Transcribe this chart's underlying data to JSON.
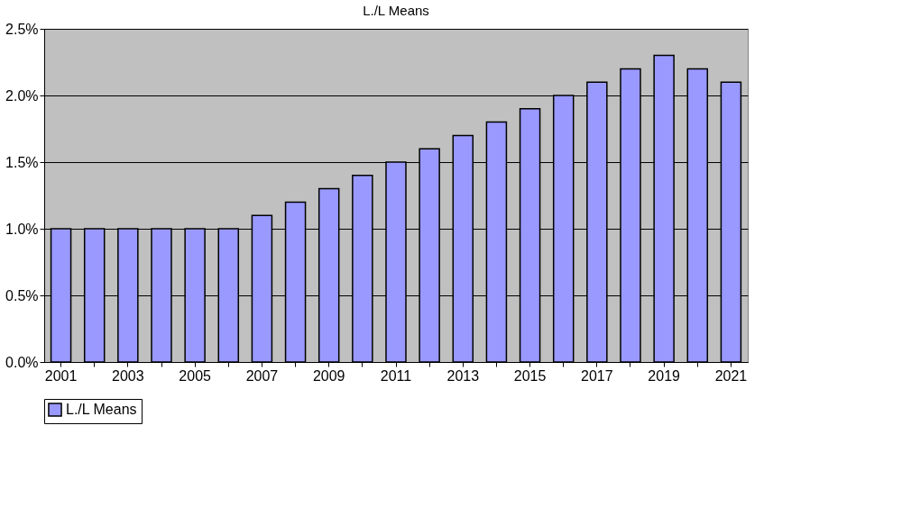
{
  "chart_data": {
    "type": "bar",
    "title": "L./L Means",
    "categories": [
      "2001",
      null,
      "2003",
      null,
      "2005",
      null,
      "2007",
      null,
      "2009",
      null,
      "2011",
      null,
      "2013",
      null,
      "2015",
      null,
      "2017",
      null,
      "2019",
      null,
      "2021"
    ],
    "series": [
      {
        "name": "L./L Means",
        "color": "#9999ff",
        "values": [
          1.0,
          1.0,
          1.0,
          1.0,
          1.0,
          1.0,
          1.1,
          1.2,
          1.3,
          1.4,
          1.5,
          1.6,
          1.7,
          1.8,
          1.9,
          2.0,
          2.1,
          2.2,
          2.3,
          2.2,
          2.1
        ]
      }
    ],
    "ylim": [
      0,
      2.5
    ],
    "yticks": [
      {
        "value": 0,
        "label": "0.0%"
      },
      {
        "value": 0.5,
        "label": "0.5%"
      },
      {
        "value": 1.0,
        "label": "1.0%"
      },
      {
        "value": 1.5,
        "label": "1.5%"
      },
      {
        "value": 2.0,
        "label": "2.0%"
      },
      {
        "value": 2.5,
        "label": "2.5%"
      }
    ],
    "grid": "y",
    "legend": "bottom"
  }
}
